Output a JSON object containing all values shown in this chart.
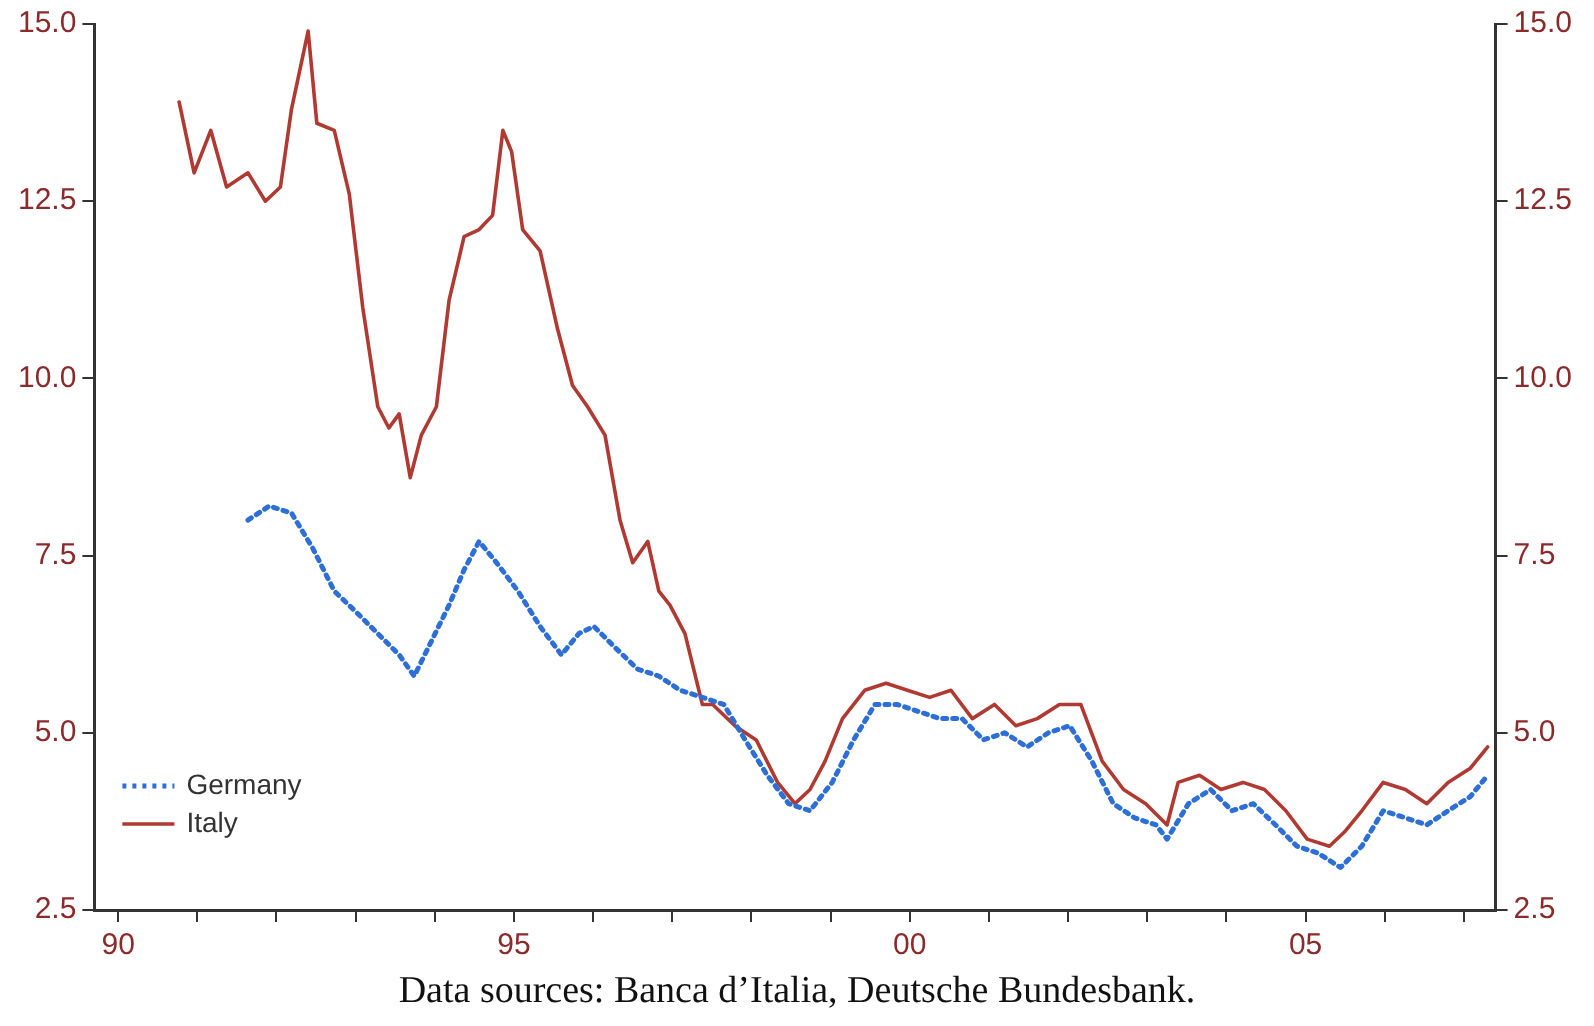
{
  "chart_data": {
    "type": "line",
    "annotations": [
      "Data sources: Banca d’Italia, Deutsche Bundesbank."
    ],
    "xlim": [
      1989.7,
      2007.4
    ],
    "xticks": [
      {
        "value": 1990,
        "label": "90"
      },
      {
        "value": 1991,
        "label": null
      },
      {
        "value": 1992,
        "label": null
      },
      {
        "value": 1993,
        "label": null
      },
      {
        "value": 1994,
        "label": null
      },
      {
        "value": 1995,
        "label": "95"
      },
      {
        "value": 1996,
        "label": null
      },
      {
        "value": 1997,
        "label": null
      },
      {
        "value": 1998,
        "label": null
      },
      {
        "value": 1999,
        "label": null
      },
      {
        "value": 2000,
        "label": "00"
      },
      {
        "value": 2001,
        "label": null
      },
      {
        "value": 2002,
        "label": null
      },
      {
        "value": 2003,
        "label": null
      },
      {
        "value": 2004,
        "label": null
      },
      {
        "value": 2005,
        "label": "05"
      },
      {
        "value": 2006,
        "label": null
      },
      {
        "value": 2007,
        "label": null
      }
    ],
    "ylim": [
      2.5,
      15.0
    ],
    "yticks": [
      {
        "value": 2.5,
        "label": "2.5"
      },
      {
        "value": 5,
        "label": "5.0"
      },
      {
        "value": 7.5,
        "label": "7.5"
      },
      {
        "value": 10,
        "label": "10.0"
      },
      {
        "value": 12.5,
        "label": "12.5"
      },
      {
        "value": 15,
        "label": "15.0"
      }
    ],
    "y2lim": [
      2.5,
      15.0
    ],
    "y2ticks": [
      {
        "value": 2.5,
        "label": "2.5"
      },
      {
        "value": 5,
        "label": "5.0"
      },
      {
        "value": 7.5,
        "label": "7.5"
      },
      {
        "value": 10,
        "label": "10.0"
      },
      {
        "value": 12.5,
        "label": "12.5"
      },
      {
        "value": 15,
        "label": "15.0"
      }
    ],
    "grid": false,
    "legend": "bottom left",
    "marker": "none",
    "series": [
      {
        "name": "Germany",
        "color": "#2d6fd6",
        "line_style": "dotted",
        "x": [
          1991.64,
          1991.91,
          1992.19,
          1992.46,
          1992.73,
          1993.01,
          1993.28,
          1993.55,
          1993.74,
          1993.96,
          1994.18,
          1994.37,
          1994.56,
          1994.78,
          1995.05,
          1995.33,
          1995.6,
          1995.82,
          1996.01,
          1996.28,
          1996.56,
          1996.83,
          1997.1,
          1997.38,
          1997.65,
          1997.92,
          1998.2,
          1998.47,
          1998.74,
          1999.02,
          1999.29,
          1999.56,
          1999.84,
          2000.11,
          2000.38,
          2000.66,
          2000.93,
          2001.2,
          2001.48,
          2001.75,
          2002.02,
          2002.3,
          2002.57,
          2002.84,
          2003.11,
          2003.25,
          2003.52,
          2003.8,
          2004.07,
          2004.34,
          2004.62,
          2004.89,
          2005.16,
          2005.44,
          2005.71,
          2005.98,
          2006.26,
          2006.53,
          2006.8,
          2007.08,
          2007.3
        ],
        "values": [
          8.0,
          8.2,
          8.1,
          7.6,
          7.0,
          6.7,
          6.4,
          6.1,
          5.8,
          6.3,
          6.8,
          7.3,
          7.7,
          7.4,
          7.0,
          6.5,
          6.1,
          6.4,
          6.5,
          6.2,
          5.9,
          5.8,
          5.6,
          5.5,
          5.4,
          4.9,
          4.4,
          4.0,
          3.9,
          4.3,
          4.9,
          5.4,
          5.4,
          5.3,
          5.2,
          5.2,
          4.9,
          5.0,
          4.8,
          5.0,
          5.1,
          4.6,
          4.0,
          3.8,
          3.7,
          3.5,
          4.0,
          4.2,
          3.9,
          4.0,
          3.7,
          3.4,
          3.3,
          3.1,
          3.4,
          3.9,
          3.8,
          3.7,
          3.9,
          4.1,
          4.4
        ]
      },
      {
        "name": "Italy",
        "color": "#b03a32",
        "line_style": "solid",
        "x": [
          1990.77,
          1990.96,
          1991.17,
          1991.37,
          1991.64,
          1991.86,
          1992.05,
          1992.19,
          1992.4,
          1992.51,
          1992.73,
          1992.92,
          1993.09,
          1993.28,
          1993.42,
          1993.55,
          1993.69,
          1993.83,
          1994.02,
          1994.18,
          1994.37,
          1994.56,
          1994.73,
          1994.86,
          1994.97,
          1995.11,
          1995.33,
          1995.55,
          1995.74,
          1995.93,
          1996.15,
          1996.34,
          1996.5,
          1996.69,
          1996.83,
          1996.97,
          1997.16,
          1997.38,
          1997.51,
          1997.79,
          1998.06,
          1998.33,
          1998.55,
          1998.74,
          1998.93,
          1999.15,
          1999.43,
          1999.7,
          1999.97,
          2000.25,
          2000.52,
          2000.79,
          2001.07,
          2001.34,
          2001.61,
          2001.89,
          2002.16,
          2002.43,
          2002.7,
          2002.98,
          2003.25,
          2003.39,
          2003.66,
          2003.93,
          2004.21,
          2004.48,
          2004.75,
          2005.02,
          2005.3,
          2005.49,
          2005.71,
          2005.98,
          2006.26,
          2006.53,
          2006.8,
          2007.08,
          2007.3
        ],
        "values": [
          13.9,
          12.9,
          13.5,
          12.7,
          12.9,
          12.5,
          12.7,
          13.8,
          14.9,
          13.6,
          13.5,
          12.6,
          11.0,
          9.6,
          9.3,
          9.5,
          8.6,
          9.2,
          9.6,
          11.1,
          12.0,
          12.1,
          12.3,
          13.5,
          13.2,
          12.1,
          11.8,
          10.7,
          9.9,
          9.6,
          9.2,
          8.0,
          7.4,
          7.7,
          7.0,
          6.8,
          6.4,
          5.4,
          5.4,
          5.1,
          4.9,
          4.3,
          4.0,
          4.2,
          4.6,
          5.2,
          5.6,
          5.7,
          5.6,
          5.5,
          5.6,
          5.2,
          5.4,
          5.1,
          5.2,
          5.4,
          5.4,
          4.6,
          4.2,
          4.0,
          3.7,
          4.3,
          4.4,
          4.2,
          4.3,
          4.2,
          3.9,
          3.5,
          3.4,
          3.6,
          3.9,
          4.3,
          4.2,
          4.0,
          4.3,
          4.5,
          4.8
        ]
      }
    ]
  }
}
